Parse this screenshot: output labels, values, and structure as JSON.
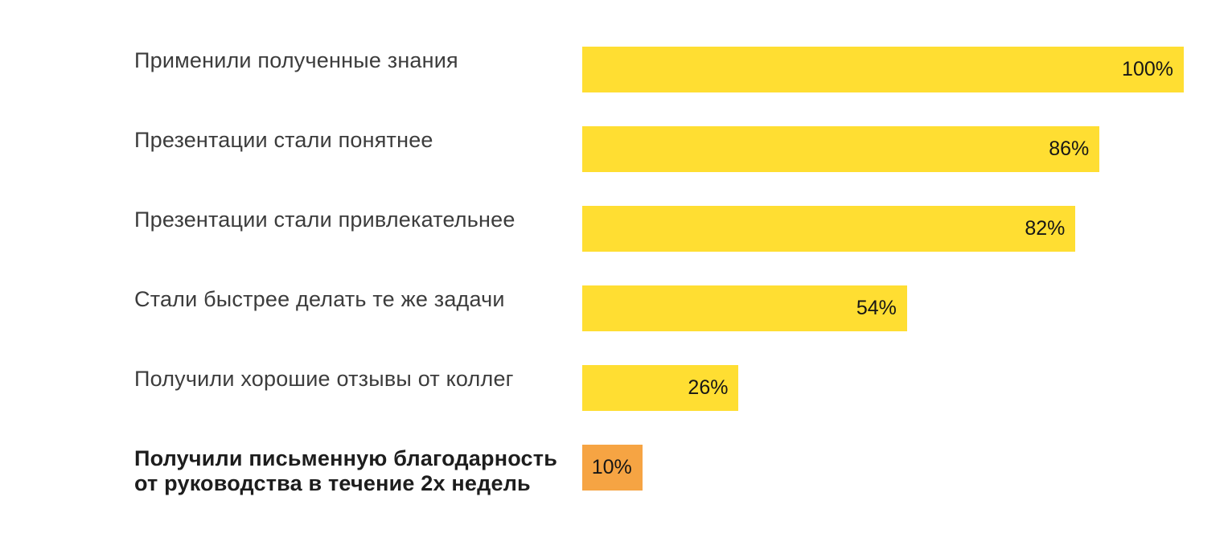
{
  "page": {
    "background": "#ffffff"
  },
  "chart_data": {
    "type": "bar",
    "orientation": "horizontal",
    "title": "",
    "xlabel": "",
    "ylabel": "",
    "xlim": [
      0,
      100
    ],
    "grid": false,
    "legend": false,
    "bar_color_default": "#FFDE32",
    "bar_color_highlight": "#F6A443",
    "categories": [
      "Применили полученные знания",
      "Презентации стали понятнее",
      "Презентации стали привлекательнее",
      "Стали быстрее делать те же задачи",
      "Получили хорошие отзывы от коллег",
      "Получили письменную благодарность от руководства в течение 2х недель"
    ],
    "values": [
      100,
      86,
      82,
      54,
      26,
      10
    ],
    "rows": [
      {
        "label": "Применили полученные знания",
        "value": 100,
        "value_label": "100%",
        "color": "#FFDE32",
        "bold": false
      },
      {
        "label": "Презентации стали понятнее",
        "value": 86,
        "value_label": "86%",
        "color": "#FFDE32",
        "bold": false
      },
      {
        "label": "Презентации стали привлекательнее",
        "value": 82,
        "value_label": "82%",
        "color": "#FFDE32",
        "bold": false
      },
      {
        "label": "Стали быстрее делать те же задачи",
        "value": 54,
        "value_label": "54%",
        "color": "#FFDE32",
        "bold": false
      },
      {
        "label": "Получили хорошие отзывы от коллег",
        "value": 26,
        "value_label": "26%",
        "color": "#FFDE32",
        "bold": false
      },
      {
        "label": "Получили письменную благодарность от руководства в течение 2х недель",
        "value": 10,
        "value_label": "10%",
        "color": "#F6A443",
        "bold": true
      }
    ]
  }
}
